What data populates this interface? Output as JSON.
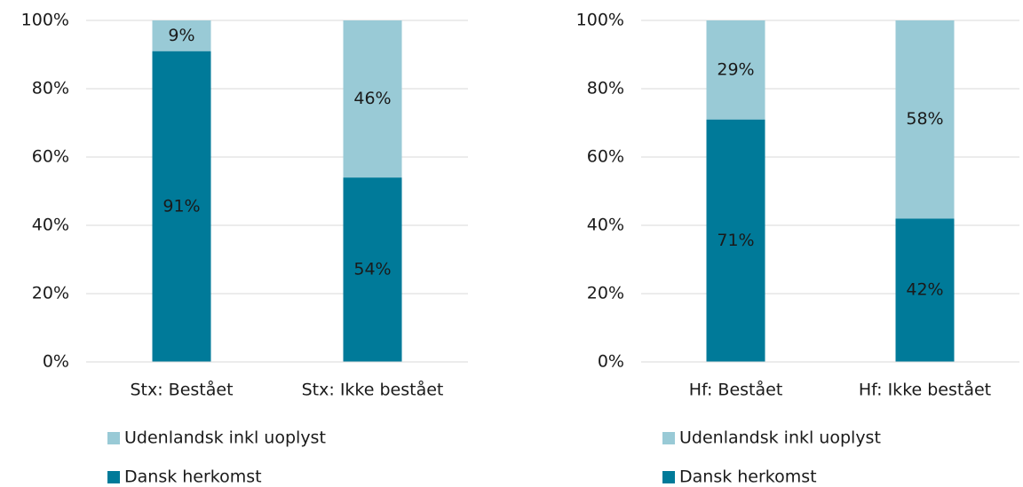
{
  "chart_data": [
    {
      "type": "stacked_bar",
      "categories": [
        "Stx: Bestået",
        "Stx: Ikke bestået"
      ],
      "series": [
        {
          "name": "Dansk herkomst",
          "color": "#007a99",
          "values": [
            91,
            54
          ],
          "value_labels": [
            "91%",
            "54%"
          ]
        },
        {
          "name": "Udenlandsk inkl uoplyst",
          "color": "#99cad6",
          "values": [
            9,
            46
          ],
          "value_labels": [
            "9%",
            "46%"
          ]
        }
      ],
      "ylim": [
        0,
        100
      ],
      "yticks": [
        {
          "value": 0,
          "label": "0%"
        },
        {
          "value": 20,
          "label": "20%"
        },
        {
          "value": 40,
          "label": "40%"
        },
        {
          "value": 60,
          "label": "60%"
        },
        {
          "value": 80,
          "label": "80%"
        },
        {
          "value": 100,
          "label": "100%"
        }
      ],
      "grid": true,
      "legend": "bottom"
    },
    {
      "type": "stacked_bar",
      "categories": [
        "Hf: Bestået",
        "Hf: Ikke bestået"
      ],
      "series": [
        {
          "name": "Dansk herkomst",
          "color": "#007a99",
          "values": [
            71,
            42
          ],
          "value_labels": [
            "71%",
            "42%"
          ]
        },
        {
          "name": "Udenlandsk inkl uoplyst",
          "color": "#99cad6",
          "values": [
            29,
            58
          ],
          "value_labels": [
            "29%",
            "58%"
          ]
        }
      ],
      "ylim": [
        0,
        100
      ],
      "yticks": [
        {
          "value": 0,
          "label": "0%"
        },
        {
          "value": 20,
          "label": "20%"
        },
        {
          "value": 40,
          "label": "40%"
        },
        {
          "value": 60,
          "label": "60%"
        },
        {
          "value": 80,
          "label": "80%"
        },
        {
          "value": 100,
          "label": "100%"
        }
      ],
      "grid": true,
      "legend": "bottom"
    }
  ]
}
